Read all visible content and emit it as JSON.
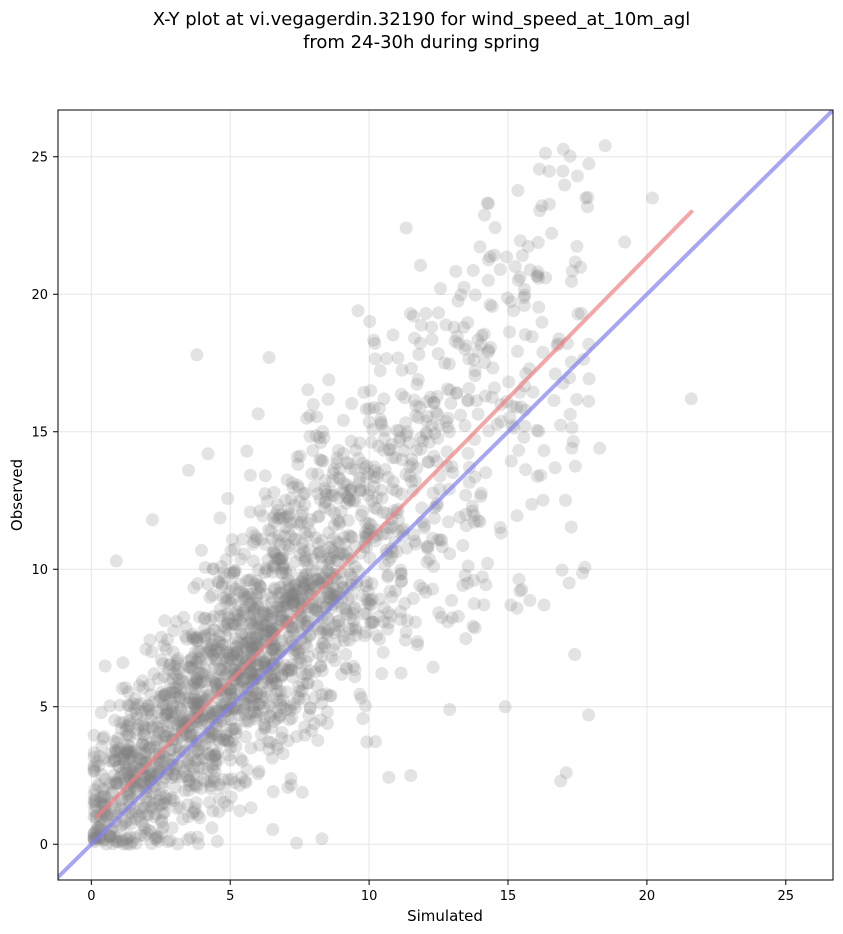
{
  "chart_data": {
    "type": "scatter",
    "title_lines": [
      "X-Y plot at vi.vegagerdin.32190 for wind_speed_at_10m_agl",
      "from 24-30h during spring"
    ],
    "xlabel": "Simulated",
    "ylabel": "Observed",
    "xlim": [
      -1.2,
      26.7
    ],
    "ylim": [
      -1.3,
      26.7
    ],
    "x_ticks": [
      0,
      5,
      10,
      15,
      20,
      25
    ],
    "y_ticks": [
      0,
      5,
      10,
      15,
      20,
      25
    ],
    "grid": true,
    "point_color": "#808080",
    "point_alpha": 0.22,
    "n_points": 2200,
    "regression_line": {
      "color": "#f08080",
      "x": [
        0.2,
        21.6
      ],
      "y": [
        1.0,
        23.0
      ]
    },
    "identity_line": {
      "color": "#8080f0",
      "x": [
        -1.2,
        26.7
      ],
      "y": [
        -1.2,
        26.7
      ]
    },
    "outliers": [
      {
        "x": 3.8,
        "y": 17.8
      },
      {
        "x": 6.4,
        "y": 17.7
      },
      {
        "x": 18.5,
        "y": 25.4
      },
      {
        "x": 20.2,
        "y": 23.5
      },
      {
        "x": 21.6,
        "y": 16.2
      },
      {
        "x": 17.9,
        "y": 4.7
      },
      {
        "x": 17.1,
        "y": 2.6
      },
      {
        "x": 16.9,
        "y": 2.3
      },
      {
        "x": 17.4,
        "y": 6.9
      },
      {
        "x": 17.2,
        "y": 9.5
      },
      {
        "x": 14.9,
        "y": 5.0
      },
      {
        "x": 14.3,
        "y": 23.3
      },
      {
        "x": 17.5,
        "y": 24.3
      },
      {
        "x": 17.8,
        "y": 23.5
      },
      {
        "x": 16.3,
        "y": 8.7
      },
      {
        "x": 8.3,
        "y": 0.2
      },
      {
        "x": 11.5,
        "y": 2.5
      },
      {
        "x": 0.9,
        "y": 10.3
      },
      {
        "x": 2.2,
        "y": 11.8
      },
      {
        "x": 3.5,
        "y": 13.6
      },
      {
        "x": 4.2,
        "y": 14.2
      },
      {
        "x": 5.6,
        "y": 14.3
      },
      {
        "x": 19.2,
        "y": 21.9
      },
      {
        "x": 18.3,
        "y": 14.4
      },
      {
        "x": 15.1,
        "y": 8.7
      },
      {
        "x": 16.8,
        "y": 18.2
      },
      {
        "x": 0.4,
        "y": 0.3
      },
      {
        "x": 12.9,
        "y": 4.9
      },
      {
        "x": 13.4,
        "y": 18.8
      },
      {
        "x": 9.6,
        "y": 19.4
      }
    ]
  }
}
